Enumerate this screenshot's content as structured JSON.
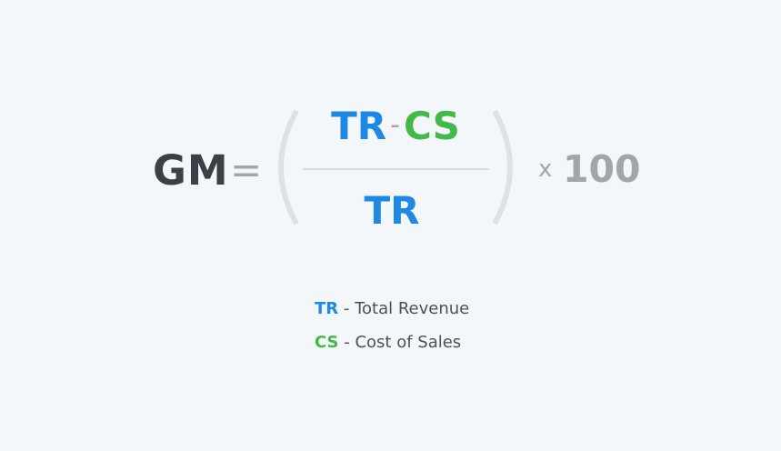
{
  "formula": {
    "lhs": "GM",
    "equals": "=",
    "numerator": {
      "term1": "TR",
      "operator": "-",
      "term2": "CS"
    },
    "denominator": "TR",
    "times": "x",
    "multiplier": "100"
  },
  "legend": [
    {
      "abbr": "TR",
      "text": "- Total Revenue",
      "color": "#1e88e5"
    },
    {
      "abbr": "CS",
      "text": "- Cost of Sales",
      "color": "#43b94a"
    }
  ],
  "colors": {
    "background": "#f4f7fa",
    "blue": "#1e88e5",
    "green": "#43b94a",
    "dark": "#3a4046",
    "gray": "#a0a6ac"
  }
}
